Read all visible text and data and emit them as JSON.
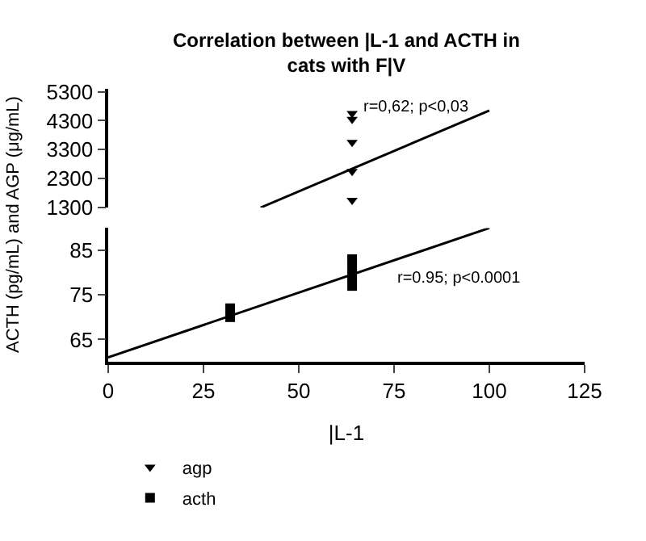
{
  "chart_data": [
    {
      "type": "scatter",
      "title": "Correlation between |L-1 and ACTH in cats with F|V",
      "xlim": [
        0,
        125
      ],
      "ylim": [
        1300,
        5400
      ],
      "yticks": [
        1300,
        2300,
        3300,
        4300,
        5300
      ],
      "tick_labels": "y",
      "legend": "bottom",
      "series": [
        {
          "name": "agp",
          "color": "#000000",
          "marker": "triangle",
          "x": [
            64,
            64,
            64,
            64,
            64
          ],
          "values": [
            4550,
            4350,
            3550,
            2550,
            1550
          ]
        },
        {
          "type": "line",
          "color": "#000000",
          "marker": "none",
          "x": [
            40,
            100
          ],
          "values": [
            1300,
            4650
          ]
        }
      ],
      "annotations": [
        "r=0,62; p<0,03"
      ]
    },
    {
      "type": "scatter",
      "xlabel": "|L-1",
      "ylabel": "ACTH (pg/mL) and AGP (μg/mL)",
      "xlim": [
        0,
        125
      ],
      "xticks": [
        0,
        25,
        50,
        75,
        100,
        125
      ],
      "ylim": [
        60,
        90
      ],
      "yticks": [
        65,
        75,
        85
      ],
      "legend": "bottom",
      "series": [
        {
          "name": "acth",
          "color": "#000000",
          "marker": "square",
          "x": [
            32,
            32,
            64,
            64,
            64,
            64
          ],
          "values": [
            72,
            70,
            83,
            81,
            79,
            77
          ]
        },
        {
          "type": "line",
          "color": "#000000",
          "marker": "none",
          "x": [
            0,
            100
          ],
          "values": [
            61,
            90
          ]
        }
      ],
      "annotations": [
        "r=0.95; p<0.0001"
      ]
    }
  ]
}
